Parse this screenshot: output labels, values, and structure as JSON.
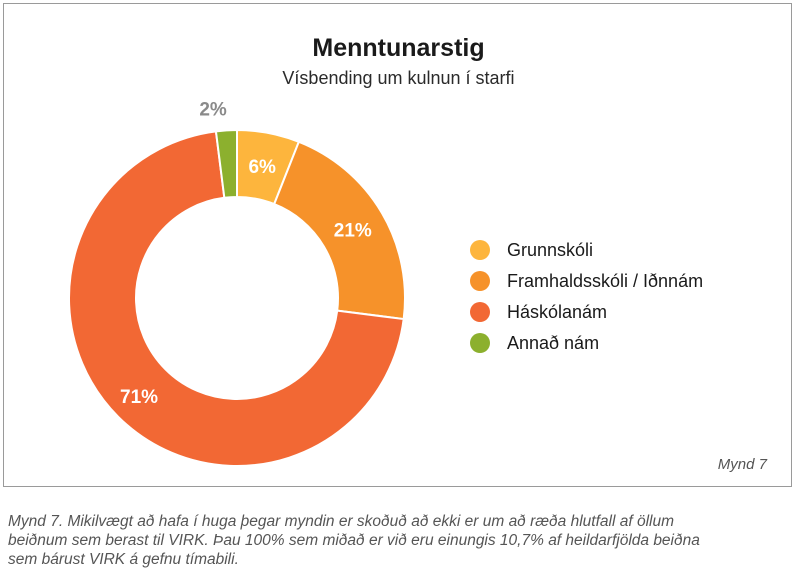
{
  "chart_data": {
    "type": "pie",
    "title": "Menntunarstig",
    "subtitle": "Vísbending um kulnun í starfi",
    "categories": [
      "Grunnskóli",
      "Framhaldsskóli / Iðnnám",
      "Háskólanám",
      "Annað nám"
    ],
    "values": [
      6,
      21,
      71,
      2
    ],
    "labels": [
      "6%",
      "21%",
      "71%",
      "2%"
    ],
    "colors": [
      "#FDB53D",
      "#F6922A",
      "#F26834",
      "#8CB02E"
    ],
    "legend_position": "right",
    "donut": true
  },
  "figure": {
    "source_label": "Mynd 7",
    "caption_lines": [
      "Mynd 7. Mikilvægt að hafa í huga þegar myndin er skoðuð að ekki er um að ræða hlutfall af öllum",
      "beiðnum sem berast til VIRK. Þau 100% sem miðað er við eru einungis 10,7% af heildarfjölda beiðna",
      "sem bárust VIRK á gefnu tímabili."
    ]
  }
}
